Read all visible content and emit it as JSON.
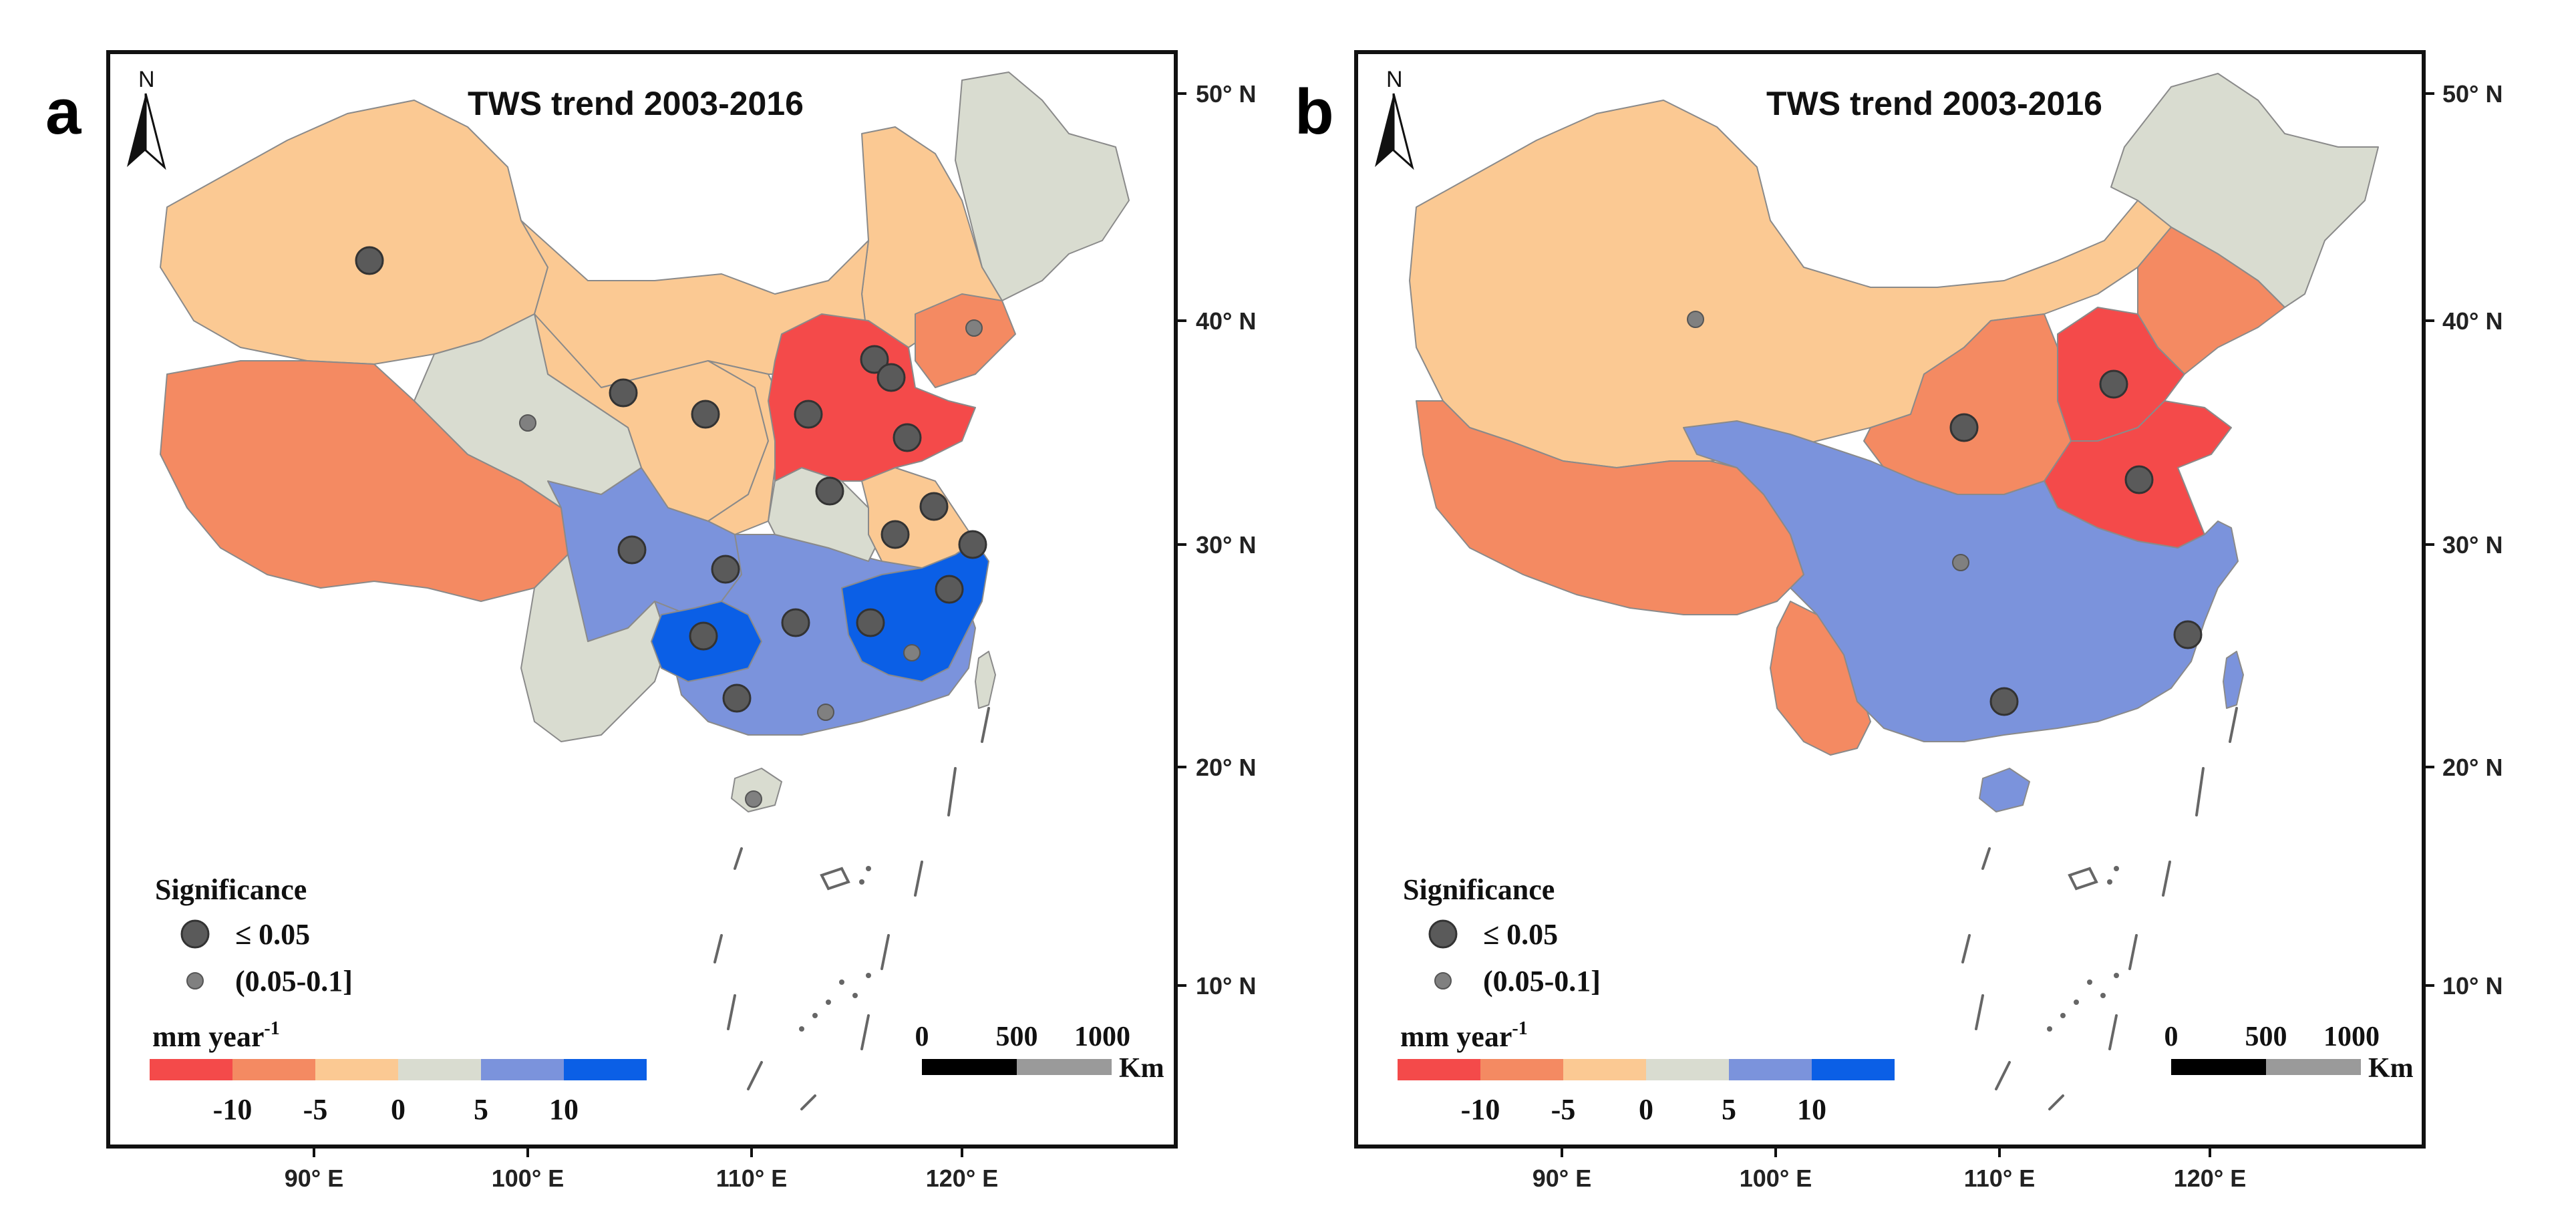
{
  "panels": [
    {
      "letter": "a",
      "title": "TWS trend 2003-2016",
      "north_label": "N",
      "lat_labels": [
        "50° N",
        "40° N",
        "30° N",
        "20° N",
        "10° N"
      ],
      "lon_labels": [
        "90° E",
        "100° E",
        "110° E",
        "120° E"
      ],
      "legend": {
        "significance_title": "Significance",
        "sig_large_label": "≤ 0.05",
        "sig_small_label": "(0.05-0.1]",
        "unit_label": "mm year",
        "unit_superscript": "-1",
        "tick_labels": [
          "-10",
          "-5",
          "0",
          "5",
          "10"
        ]
      },
      "scale_bar": {
        "labels": [
          "0",
          "500",
          "1000"
        ],
        "unit": "Km"
      }
    },
    {
      "letter": "b",
      "title": "TWS trend 2003-2016",
      "north_label": "N",
      "lat_labels": [
        "50° N",
        "40° N",
        "30° N",
        "20° N",
        "10° N"
      ],
      "lon_labels": [
        "90° E",
        "100° E",
        "110° E",
        "120° E"
      ],
      "legend": {
        "significance_title": "Significance",
        "sig_large_label": "≤ 0.05",
        "sig_small_label": "(0.05-0.1]",
        "unit_label": "mm year",
        "unit_superscript": "-1",
        "tick_labels": [
          "-10",
          "-5",
          "0",
          "5",
          "10"
        ]
      },
      "scale_bar": {
        "labels": [
          "0",
          "500",
          "1000"
        ],
        "unit": "Km"
      }
    }
  ],
  "colors": {
    "class_lt_-10": "#f44a4a",
    "class_-10_-5": "#f48a62",
    "class_-5_0": "#fbc993",
    "class_0_5": "#d9dcd0",
    "class_5_10": "#7b93dc",
    "class_gt_10": "#0b5fe6",
    "dot_large": "#5a5a5a",
    "dot_small": "#808080",
    "scale_black": "#000000",
    "scale_gray": "#9a9a9a"
  }
}
